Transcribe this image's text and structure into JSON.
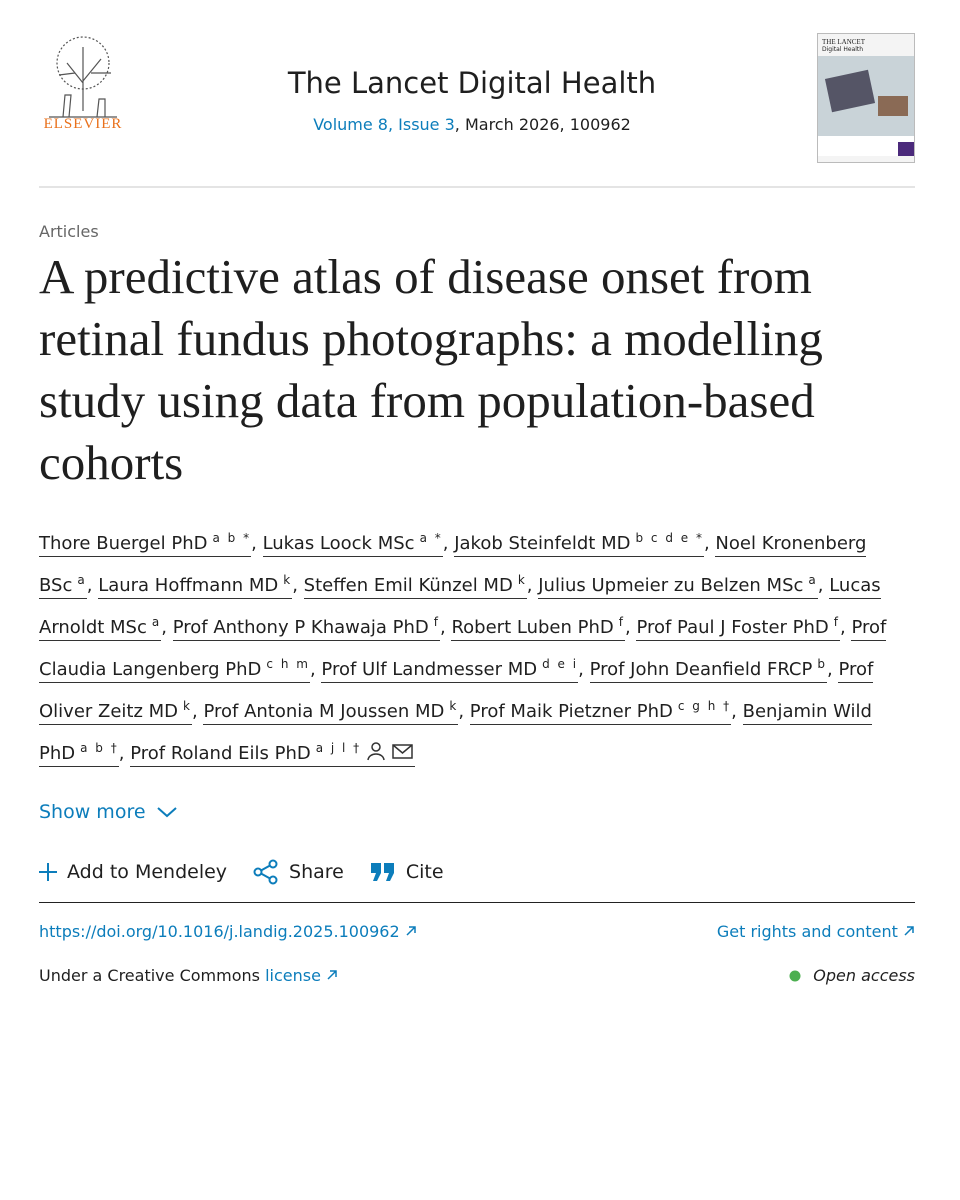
{
  "header": {
    "publisher": "ELSEVIER",
    "journal": "The Lancet Digital Health",
    "volume_issue": "Volume 8, Issue 3",
    "date_id": ", March 2026, 100962",
    "cover_title": "THE LANCET",
    "cover_subtitle": "Digital Health"
  },
  "article": {
    "section": "Articles",
    "title": "A predictive atlas of disease onset from retinal fundus photographs: a modelling study using data from population-based cohorts",
    "separator": ",",
    "authors": [
      {
        "name": "Thore Buergel PhD",
        "affiliations": "a b *"
      },
      {
        "name": "Lukas Loock MSc",
        "affiliations": "a *"
      },
      {
        "name": "Jakob Steinfeldt MD",
        "affiliations": "b c d e *"
      },
      {
        "name": "Noel Kronenberg BSc",
        "affiliations": "a"
      },
      {
        "name": "Laura Hoffmann MD",
        "affiliations": "k"
      },
      {
        "name": "Steffen Emil Künzel MD",
        "affiliations": "k"
      },
      {
        "name": "Julius Upmeier zu Belzen MSc",
        "affiliations": "a"
      },
      {
        "name": "Lucas Arnoldt MSc",
        "affiliations": "a"
      },
      {
        "name": "Prof Anthony P Khawaja PhD",
        "affiliations": "f"
      },
      {
        "name": "Robert Luben PhD",
        "affiliations": "f"
      },
      {
        "name": "Prof Paul J Foster PhD",
        "affiliations": "f"
      },
      {
        "name": "Prof Claudia Langenberg PhD",
        "affiliations": "c h m"
      },
      {
        "name": "Prof Ulf Landmesser MD",
        "affiliations": "d e i"
      },
      {
        "name": "Prof John Deanfield FRCP",
        "affiliations": "b"
      },
      {
        "name": "Prof Oliver Zeitz MD",
        "affiliations": "k"
      },
      {
        "name": "Prof Antonia M Joussen MD",
        "affiliations": "k"
      },
      {
        "name": "Prof Maik Pietzner PhD",
        "affiliations": "c g h †"
      },
      {
        "name": "Benjamin Wild PhD",
        "affiliations": "a b †"
      },
      {
        "name": "Prof Roland Eils PhD",
        "affiliations": "a j l †"
      }
    ],
    "show_more": "Show more",
    "actions": [
      "Add to Mendeley",
      "Share",
      "Cite"
    ],
    "doi": "https://doi.org/10.1016/j.landig.2025.100962",
    "rights": "Get rights and content",
    "license_prefix": "Under a Creative Commons",
    "license_link": "license",
    "access": "Open access"
  }
}
